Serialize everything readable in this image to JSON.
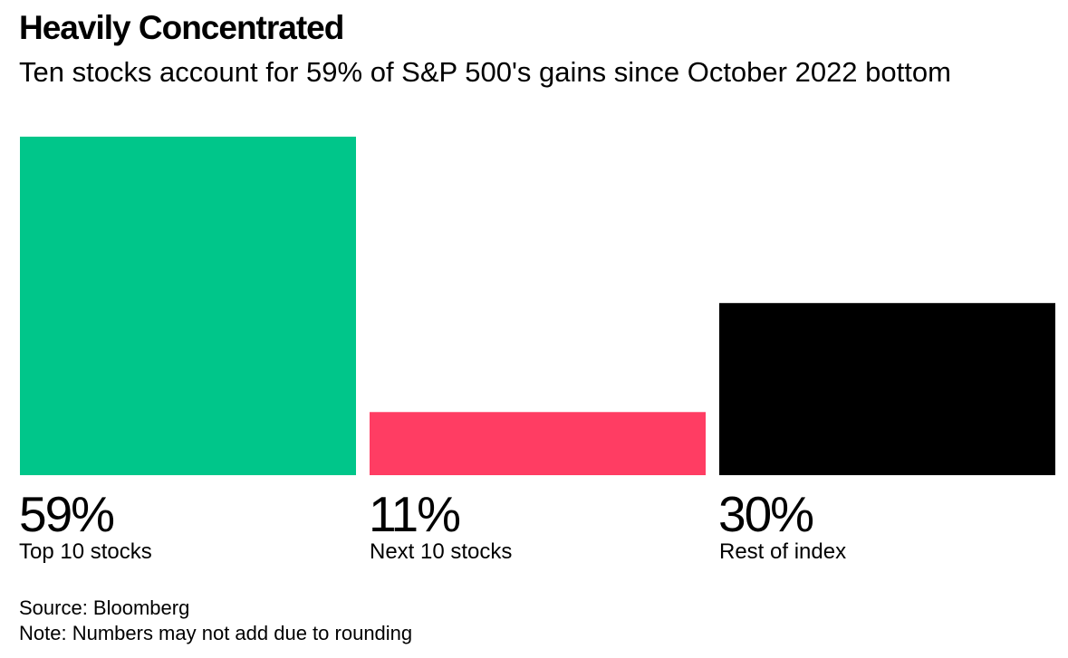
{
  "chart_data": {
    "type": "bar",
    "title": "Heavily Concentrated",
    "subtitle": "Ten stocks account for 59% of S&P 500's gains since October 2022 bottom",
    "categories": [
      "Top 10 stocks",
      "Next 10 stocks",
      "Rest of index"
    ],
    "values": [
      59,
      11,
      30
    ],
    "value_labels": [
      "59%",
      "11%",
      "30%"
    ],
    "colors": [
      "#00c68a",
      "#ff3d63",
      "#000000"
    ],
    "xlabel": "",
    "ylabel": "",
    "ylim": [
      0,
      59
    ],
    "grid": false,
    "legend": "none"
  },
  "footer": {
    "source": "Source: Bloomberg",
    "note": "Note: Numbers may not add due to rounding"
  }
}
